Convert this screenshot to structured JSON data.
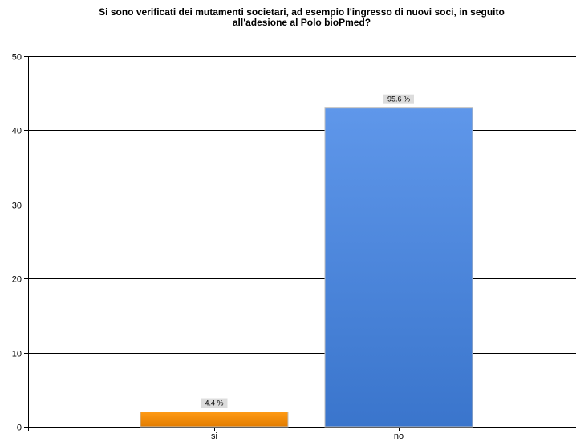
{
  "chart_data": {
    "type": "bar",
    "title_lines": [
      "Si sono verificati dei mutamenti societari, ad esempio l'ingresso di nuovi soci, in seguito",
      "all'adesione al Polo bioPmed?"
    ],
    "categories": [
      "si",
      "no"
    ],
    "values": [
      2,
      43
    ],
    "data_labels": [
      "4.4 %",
      "95.6 %"
    ],
    "colors": [
      "#f08c00",
      "#4a86dc"
    ],
    "yticks": [
      0,
      10,
      20,
      30,
      40,
      50
    ],
    "ylim": [
      0,
      50
    ],
    "grid": true,
    "legend": "none"
  }
}
